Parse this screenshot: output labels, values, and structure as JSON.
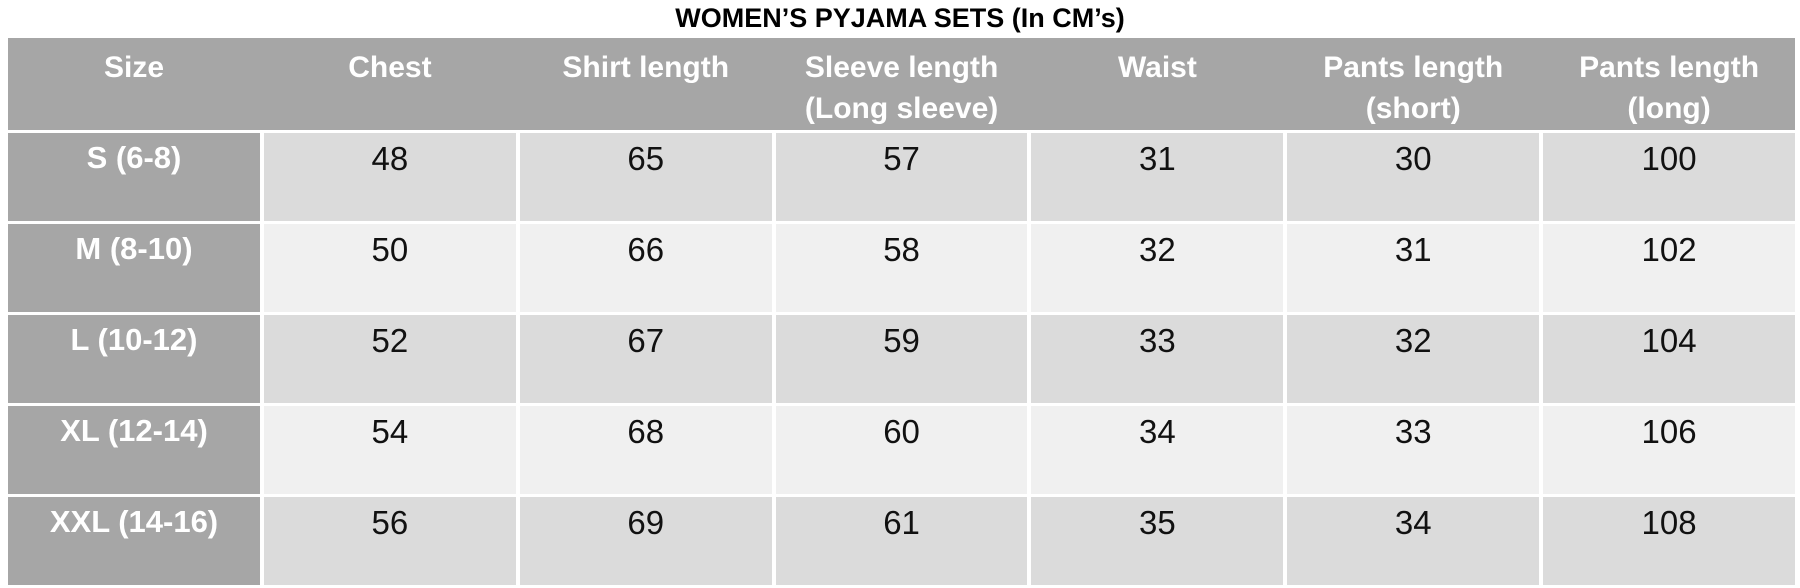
{
  "title": "WOMEN’S PYJAMA SETS (In CM’s)",
  "table": {
    "headers": [
      {
        "line1": "Size",
        "line2": ""
      },
      {
        "line1": "Chest",
        "line2": ""
      },
      {
        "line1": "Shirt length",
        "line2": ""
      },
      {
        "line1": "Sleeve length",
        "line2": "(Long sleeve)"
      },
      {
        "line1": "Waist",
        "line2": ""
      },
      {
        "line1": "Pants length",
        "line2": "(short)"
      },
      {
        "line1": "Pants length",
        "line2": "(long)"
      }
    ],
    "rows": [
      {
        "size": "S (6-8)",
        "values": [
          "48",
          "65",
          "57",
          "31",
          "30",
          "100"
        ]
      },
      {
        "size": "M (8-10)",
        "values": [
          "50",
          "66",
          "58",
          "32",
          "31",
          "102"
        ]
      },
      {
        "size": "L (10-12)",
        "values": [
          "52",
          "67",
          "59",
          "33",
          "32",
          "104"
        ]
      },
      {
        "size": "XL (12-14)",
        "values": [
          "54",
          "68",
          "60",
          "34",
          "33",
          "106"
        ]
      },
      {
        "size": "XXL (14-16)",
        "values": [
          "56",
          "69",
          "61",
          "35",
          "34",
          "108"
        ]
      }
    ]
  },
  "colors": {
    "header_bg": "#a6a6a6",
    "size_column_bg": "#a6a6a6",
    "row_band_dark": "#dbdbdb",
    "row_band_light": "#f0f0f0",
    "gridline": "#ffffff",
    "header_text": "#ffffff",
    "data_text": "#111111",
    "title_text": "#000000"
  },
  "chart_data": {
    "type": "table",
    "title": "WOMEN’S PYJAMA SETS (In CM’s)",
    "units": "cm",
    "columns": [
      "Size",
      "Chest",
      "Shirt length",
      "Sleeve length (Long sleeve)",
      "Waist",
      "Pants length (short)",
      "Pants length (long)"
    ],
    "rows": [
      [
        "S (6-8)",
        48,
        65,
        57,
        31,
        30,
        100
      ],
      [
        "M (8-10)",
        50,
        66,
        58,
        32,
        31,
        102
      ],
      [
        "L (10-12)",
        52,
        67,
        59,
        33,
        32,
        104
      ],
      [
        "XL (12-14)",
        54,
        68,
        60,
        34,
        33,
        106
      ],
      [
        "XXL (14-16)",
        56,
        69,
        61,
        35,
        34,
        108
      ]
    ],
    "layout": {
      "banded_rows": true,
      "header_row": true,
      "first_column_emphasis": true
    }
  }
}
